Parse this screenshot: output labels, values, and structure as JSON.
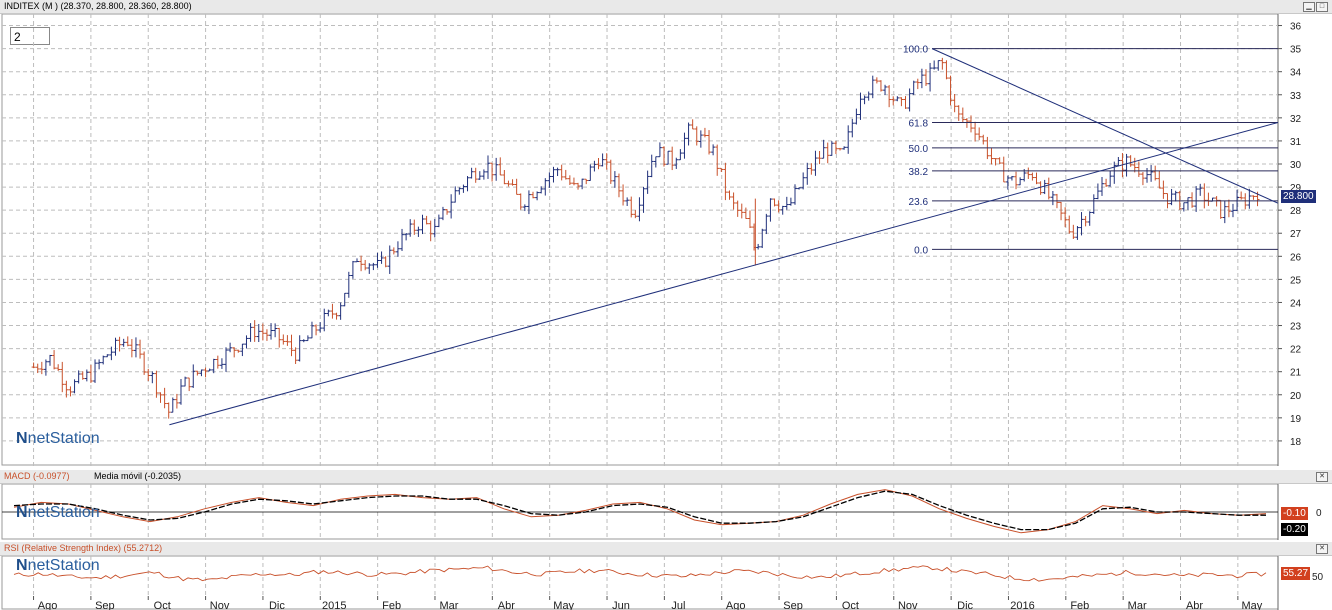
{
  "main_panel": {
    "title": "INDITEX (M ) (28.370, 28.800, 28.360, 28.800)",
    "period_box": "2",
    "last_price_badge": "28.800",
    "logo_text": "netStation"
  },
  "macd_panel": {
    "title": "MACD (-0.0977)",
    "subtitle": "Media móvil (-0.2035)",
    "badge_macd": "-0.10",
    "badge_signal": "-0.20",
    "logo_text": "netStation"
  },
  "rsi_panel": {
    "title": "RSI (Relative Strength Index) (55.2712)",
    "badge_rsi": "55.27",
    "logo_text": "netStation"
  },
  "colors": {
    "up_bar": "#1f2f7a",
    "down_bar": "#c8502a",
    "trendline": "#1f2f7a",
    "macd_line": "#c8502a",
    "signal_line": "#000000",
    "badge_red": "#d2401e",
    "badge_black": "#000000",
    "badge_blue": "#1f2f7a",
    "grid": "#bdbdbd"
  },
  "chart_data": [
    {
      "type": "line",
      "title": "INDITEX (M ) (28.370, 28.800, 28.360, 28.800)",
      "y_ticks": [
        18,
        19,
        20,
        21,
        22,
        23,
        24,
        25,
        26,
        27,
        28,
        29,
        30,
        31,
        32,
        33,
        34,
        35,
        36
      ],
      "x_labels": [
        "Ago",
        "Sep",
        "Oct",
        "Nov",
        "Dic",
        "2015",
        "Feb",
        "Mar",
        "Abr",
        "May",
        "Jun",
        "Jul",
        "Ago",
        "Sep",
        "Oct",
        "Nov",
        "Dic",
        "2016",
        "Feb",
        "Mar",
        "Abr",
        "May"
      ],
      "ylim": [
        17,
        36.5
      ],
      "series": [
        {
          "x": [
            "2014-08-01",
            "2014-08-10",
            "2014-08-20",
            "2014-09-01",
            "2014-09-10",
            "2014-09-20",
            "2014-09-28",
            "2014-10-05",
            "2014-10-13",
            "2014-10-20",
            "2014-11-01",
            "2014-11-15",
            "2014-11-28",
            "2014-12-10",
            "2014-12-20",
            "2015-01-01",
            "2015-01-12",
            "2015-01-22",
            "2015-02-03",
            "2015-02-12",
            "2015-02-25",
            "2015-03-05",
            "2015-03-15",
            "2015-03-25",
            "2015-04-01",
            "2015-04-10",
            "2015-04-20",
            "2015-05-01",
            "2015-05-10",
            "2015-05-20",
            "2015-06-01",
            "2015-06-10",
            "2015-06-20",
            "2015-07-01",
            "2015-07-10",
            "2015-07-20",
            "2015-08-01",
            "2015-08-10",
            "2015-08-20",
            "2015-08-24",
            "2015-09-01",
            "2015-09-10",
            "2015-09-20",
            "2015-10-01",
            "2015-10-10",
            "2015-10-20",
            "2015-11-01",
            "2015-11-10",
            "2015-11-20",
            "2015-11-27",
            "2015-12-02",
            "2015-12-10",
            "2015-12-20",
            "2016-01-01",
            "2016-01-10",
            "2016-01-20",
            "2016-02-01",
            "2016-02-10",
            "2016-02-20",
            "2016-03-01",
            "2016-03-10",
            "2016-03-20",
            "2016-04-01",
            "2016-04-10",
            "2016-04-20",
            "2016-05-01",
            "2016-05-10",
            "2016-05-20"
          ],
          "close": [
            21.2,
            21.6,
            20.3,
            20.9,
            21.8,
            22.4,
            21.5,
            20.6,
            19.2,
            20.4,
            21.2,
            21.9,
            22.8,
            22.5,
            21.8,
            23.0,
            23.8,
            26.0,
            25.5,
            26.5,
            27.5,
            27.1,
            28.7,
            29.6,
            30.0,
            29.4,
            28.3,
            29.2,
            29.8,
            28.8,
            30.3,
            29.1,
            27.9,
            30.6,
            30.1,
            31.5,
            30.6,
            28.4,
            27.4,
            26.2,
            28.6,
            28.0,
            29.5,
            30.7,
            30.3,
            33.2,
            33.5,
            32.4,
            33.6,
            33.9,
            34.5,
            32.1,
            31.6,
            29.8,
            29.2,
            29.6,
            28.2,
            27.0,
            28.1,
            29.6,
            30.1,
            29.7,
            28.6,
            28.3,
            28.7,
            27.9,
            28.3,
            28.8
          ],
          "note": "monthly candlesticks (approximate closes)"
        }
      ],
      "fibonacci_levels": [
        {
          "label": "100.0",
          "value": 35.0
        },
        {
          "label": "61.8",
          "value": 31.8
        },
        {
          "label": "50.0",
          "value": 30.7
        },
        {
          "label": "38.2",
          "value": 29.7
        },
        {
          "label": "23.6",
          "value": 28.4
        },
        {
          "label": "0.0",
          "value": 26.3
        }
      ],
      "last_value": 28.8
    },
    {
      "type": "line",
      "title": "MACD (-0.0977)",
      "y_ticks": [
        0
      ],
      "series": [
        {
          "name": "MACD (-0.0977)",
          "values": [
            0.3,
            0.6,
            0.5,
            0.1,
            -0.3,
            -0.6,
            -0.3,
            0.2,
            0.6,
            0.9,
            0.6,
            0.4,
            0.8,
            1.0,
            1.1,
            0.9,
            0.8,
            0.9,
            0.2,
            -0.3,
            -0.2,
            0.1,
            0.5,
            0.6,
            0.2,
            -0.5,
            -0.8,
            -0.7,
            -0.6,
            -0.2,
            0.5,
            1.1,
            1.4,
            1.0,
            0.2,
            -0.4,
            -0.9,
            -1.3,
            -1.1,
            -0.6,
            0.4,
            0.2,
            -0.1,
            0.1,
            -0.1,
            -0.2,
            -0.1
          ]
        },
        {
          "name": "Media móvil (-0.2035)",
          "values": [
            0.4,
            0.5,
            0.5,
            0.2,
            -0.2,
            -0.5,
            -0.4,
            0.0,
            0.5,
            0.8,
            0.7,
            0.5,
            0.7,
            0.9,
            1.0,
            1.0,
            0.8,
            0.8,
            0.4,
            -0.1,
            -0.2,
            0.0,
            0.4,
            0.5,
            0.3,
            -0.3,
            -0.7,
            -0.7,
            -0.6,
            -0.3,
            0.3,
            0.9,
            1.3,
            1.1,
            0.4,
            -0.2,
            -0.7,
            -1.1,
            -1.1,
            -0.7,
            0.2,
            0.3,
            0.0,
            0.0,
            -0.1,
            -0.2,
            -0.2
          ]
        }
      ],
      "last_values": {
        "macd": -0.1,
        "signal": -0.2
      }
    },
    {
      "type": "line",
      "title": "RSI (Relative Strength Index) (55.2712)",
      "y_ticks": [
        50
      ],
      "series": [
        {
          "name": "RSI (Relative Strength Index) (55.2712)",
          "values": [
            52,
            55,
            48,
            46,
            51,
            58,
            44,
            40,
            49,
            55,
            52,
            60,
            57,
            53,
            56,
            62,
            65,
            68,
            58,
            54,
            60,
            63,
            56,
            52,
            49,
            55,
            61,
            58,
            50,
            47,
            53,
            60,
            66,
            69,
            60,
            54,
            45,
            42,
            47,
            52,
            58,
            55,
            50,
            53,
            51,
            55
          ]
        }
      ],
      "last_value": 55.27
    }
  ]
}
